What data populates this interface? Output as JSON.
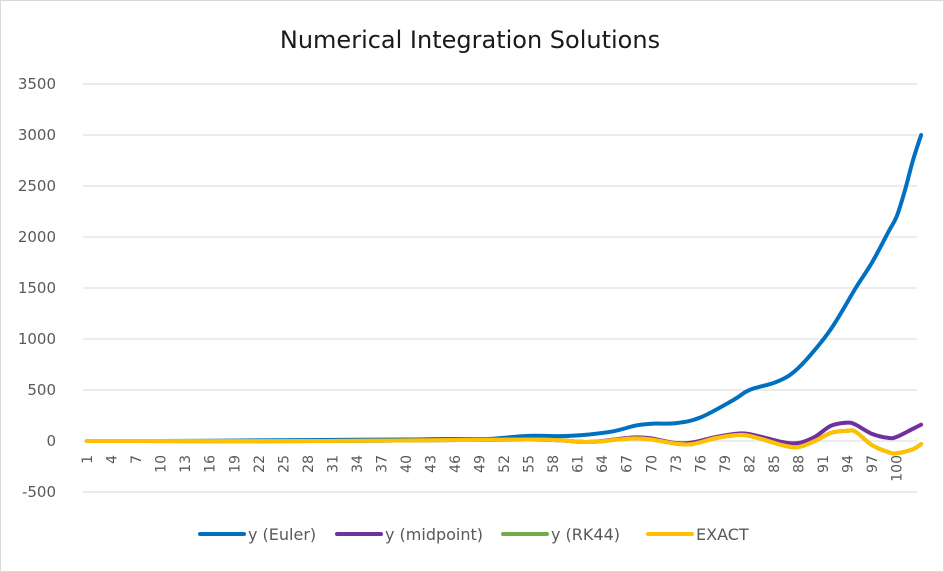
{
  "chart_data": {
    "type": "line",
    "title": "Numerical Integration Solutions",
    "xlabel": "",
    "ylabel": "",
    "ylim": [
      -500,
      3500
    ],
    "ytick_values": [
      -500,
      0,
      500,
      1000,
      1500,
      2000,
      2500,
      3000,
      3500
    ],
    "ytick_labels": [
      "-500",
      "0",
      "500",
      "1000",
      "1500",
      "2000",
      "2500",
      "3000",
      "3500"
    ],
    "xtick_labels": [
      "1",
      "4",
      "7",
      "10",
      "13",
      "16",
      "19",
      "22",
      "25",
      "28",
      "31",
      "34",
      "37",
      "40",
      "43",
      "46",
      "49",
      "52",
      "55",
      "58",
      "61",
      "64",
      "67",
      "70",
      "73",
      "76",
      "79",
      "82",
      "85",
      "88",
      "91",
      "94",
      "97",
      "100"
    ],
    "x_count": 102,
    "grid": true,
    "legend_position": "bottom",
    "colors": {
      "euler": "#0070C0",
      "midpoint": "#7030A0",
      "rk44": "#70AD47",
      "exact": "#FFC000",
      "grid": "#D9D9D9"
    },
    "series": [
      {
        "name": "y (Euler)",
        "color": "#0070C0",
        "points": [
          [
            1,
            0
          ],
          [
            10,
            0
          ],
          [
            20,
            5
          ],
          [
            30,
            10
          ],
          [
            40,
            15
          ],
          [
            45,
            20
          ],
          [
            50,
            20
          ],
          [
            55,
            50
          ],
          [
            60,
            50
          ],
          [
            65,
            90
          ],
          [
            68,
            150
          ],
          [
            70,
            170
          ],
          [
            73,
            175
          ],
          [
            76,
            230
          ],
          [
            80,
            400
          ],
          [
            82,
            500
          ],
          [
            85,
            570
          ],
          [
            87,
            650
          ],
          [
            89,
            800
          ],
          [
            92,
            1100
          ],
          [
            95,
            1500
          ],
          [
            97,
            1750
          ],
          [
            99,
            2050
          ],
          [
            100,
            2200
          ],
          [
            101,
            2450
          ],
          [
            102,
            2750
          ],
          [
            103,
            3000
          ]
        ]
      },
      {
        "name": "y (midpoint)",
        "color": "#7030A0",
        "points": [
          [
            1,
            0
          ],
          [
            30,
            0
          ],
          [
            55,
            15
          ],
          [
            62,
            -10
          ],
          [
            66,
            20
          ],
          [
            68,
            35
          ],
          [
            70,
            25
          ],
          [
            73,
            -20
          ],
          [
            75,
            -15
          ],
          [
            78,
            40
          ],
          [
            81,
            75
          ],
          [
            83,
            50
          ],
          [
            86,
            -10
          ],
          [
            88,
            -20
          ],
          [
            90,
            40
          ],
          [
            92,
            150
          ],
          [
            94,
            180
          ],
          [
            95,
            160
          ],
          [
            97,
            70
          ],
          [
            99,
            30
          ],
          [
            100,
            40
          ],
          [
            102,
            120
          ],
          [
            103,
            160
          ]
        ]
      },
      {
        "name": "y (RK44)",
        "color": "#70AD47",
        "points": [
          [
            1,
            0
          ],
          [
            30,
            0
          ],
          [
            55,
            15
          ],
          [
            62,
            -10
          ],
          [
            66,
            15
          ],
          [
            68,
            25
          ],
          [
            70,
            15
          ],
          [
            73,
            -25
          ],
          [
            75,
            -30
          ],
          [
            78,
            30
          ],
          [
            81,
            60
          ],
          [
            83,
            30
          ],
          [
            86,
            -40
          ],
          [
            88,
            -60
          ],
          [
            90,
            0
          ],
          [
            92,
            80
          ],
          [
            94,
            100
          ],
          [
            95,
            90
          ],
          [
            97,
            -40
          ],
          [
            99,
            -110
          ],
          [
            100,
            -120
          ],
          [
            102,
            -80
          ],
          [
            103,
            -30
          ]
        ]
      },
      {
        "name": "EXACT",
        "color": "#FFC000",
        "points": [
          [
            1,
            0
          ],
          [
            30,
            0
          ],
          [
            55,
            15
          ],
          [
            62,
            -10
          ],
          [
            66,
            15
          ],
          [
            68,
            25
          ],
          [
            70,
            15
          ],
          [
            73,
            -25
          ],
          [
            75,
            -30
          ],
          [
            78,
            30
          ],
          [
            81,
            60
          ],
          [
            83,
            30
          ],
          [
            86,
            -40
          ],
          [
            88,
            -60
          ],
          [
            90,
            0
          ],
          [
            92,
            80
          ],
          [
            94,
            100
          ],
          [
            95,
            90
          ],
          [
            97,
            -40
          ],
          [
            99,
            -110
          ],
          [
            100,
            -120
          ],
          [
            102,
            -80
          ],
          [
            103,
            -30
          ]
        ]
      }
    ]
  }
}
